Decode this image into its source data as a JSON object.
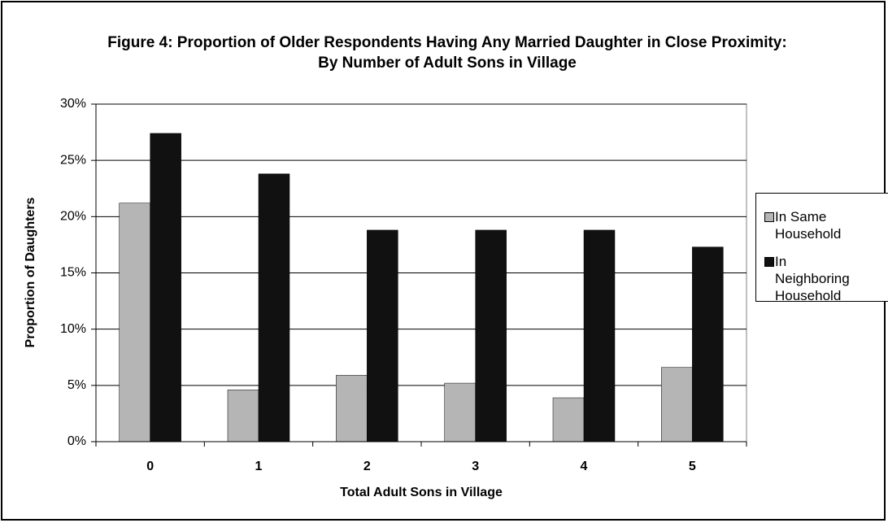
{
  "chart_data": {
    "type": "bar",
    "title": "Figure 4: Proportion of Older Respondents Having Any Married Daughter in Close Proximity: By Number of Adult Sons in Village",
    "x_label": "Total Adult Sons in Village",
    "y_label": "Proportion of Daughters",
    "categories": [
      "0",
      "1",
      "2",
      "3",
      "4",
      "5"
    ],
    "series": [
      {
        "name": "In Same Household",
        "color": "#b5b5b5",
        "values": [
          21.2,
          4.6,
          5.9,
          5.2,
          3.9,
          6.6
        ]
      },
      {
        "name": "In Neighboring Household",
        "color": "#111111",
        "values": [
          27.4,
          23.8,
          18.8,
          18.8,
          18.8,
          17.3
        ]
      }
    ],
    "ylim": [
      0,
      30
    ],
    "yticks": [
      {
        "value": 0,
        "label": "0%"
      },
      {
        "value": 5,
        "label": "5%"
      },
      {
        "value": 10,
        "label": "10%"
      },
      {
        "value": 15,
        "label": "15%"
      },
      {
        "value": 20,
        "label": "20%"
      },
      {
        "value": 25,
        "label": "25%"
      },
      {
        "value": 30,
        "label": "30%"
      }
    ],
    "grid": true,
    "legend": "right"
  }
}
